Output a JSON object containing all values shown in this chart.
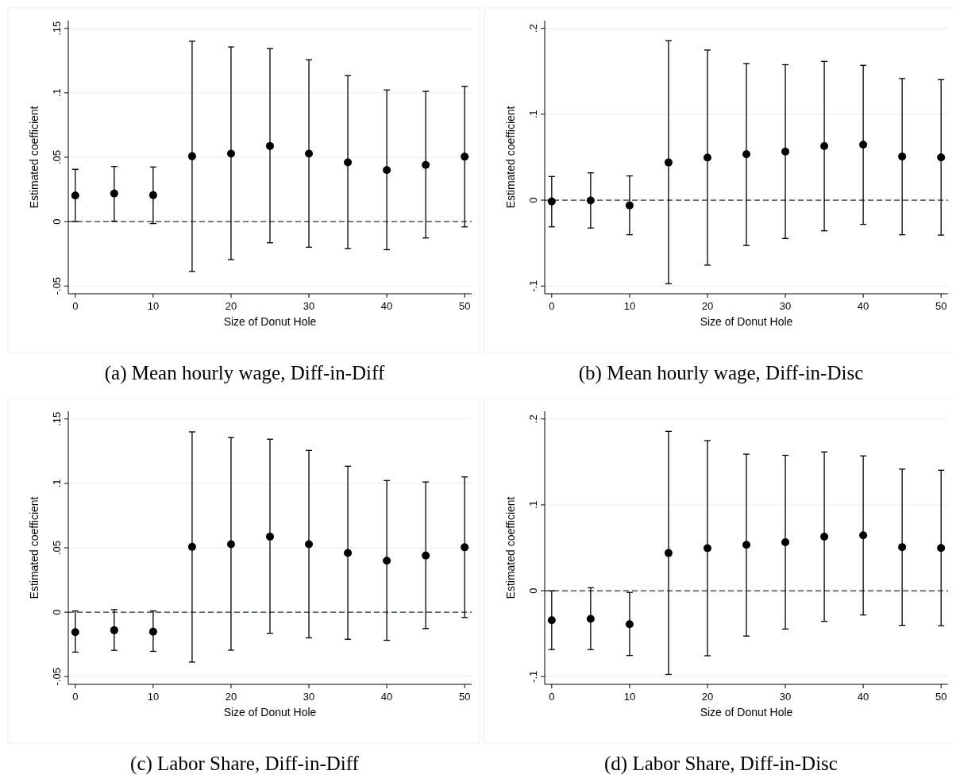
{
  "chart_data": [
    {
      "type": "scatter",
      "title": "(a) Mean hourly wage, Diff-in-Diff",
      "xlabel": "Size of Donut Hole",
      "ylabel": "Estimated coefficient",
      "x": [
        0,
        5,
        10,
        15,
        20,
        25,
        30,
        35,
        40,
        45,
        50
      ],
      "xlim": [
        -0.9,
        50.9
      ],
      "xticks": [
        0,
        10,
        20,
        30,
        40,
        50
      ],
      "ylim": [
        -0.056,
        0.156
      ],
      "yticks": [
        {
          "value": -0.05,
          "label": "-.05"
        },
        {
          "value": 0,
          "label": "0"
        },
        {
          "value": 0.05,
          "label": ".05"
        },
        {
          "value": 0.1,
          "label": ".1"
        },
        {
          "value": 0.15,
          "label": ".15"
        }
      ],
      "grid": "y",
      "marker": "circle",
      "ref_lines": [
        {
          "axis": "y",
          "value": 0,
          "line_style": "dashed",
          "color": "#333333"
        }
      ],
      "series": [
        {
          "color": "#000000",
          "values": [
            0.0203,
            0.0218,
            0.0205,
            0.0507,
            0.0528,
            0.0587,
            0.0528,
            0.046,
            0.04,
            0.044,
            0.0504
          ],
          "errors": [
            [
              0,
              0.0406
            ],
            [
              0.0004,
              0.0428
            ],
            [
              -0.0015,
              0.0424
            ],
            [
              -0.0387,
              0.14
            ],
            [
              -0.0295,
              0.1356
            ],
            [
              -0.0164,
              0.1343
            ],
            [
              -0.0199,
              0.1256
            ],
            [
              -0.021,
              0.1133
            ],
            [
              -0.0218,
              0.1022
            ],
            [
              -0.0127,
              0.1011
            ],
            [
              -0.0041,
              0.105
            ]
          ]
        }
      ]
    },
    {
      "type": "scatter",
      "title": "(b) Mean hourly wage, Diff-in-Disc",
      "xlabel": "Size of Donut Hole",
      "ylabel": "Estimated coefficient",
      "x": [
        0,
        5,
        10,
        15,
        20,
        25,
        30,
        35,
        40,
        45,
        50
      ],
      "xlim": [
        -0.9,
        50.9
      ],
      "xticks": [
        0,
        10,
        20,
        30,
        40,
        50
      ],
      "ylim": [
        -0.109,
        0.209
      ],
      "yticks": [
        {
          "value": -0.1,
          "label": "-.1"
        },
        {
          "value": 0,
          "label": "0"
        },
        {
          "value": 0.1,
          "label": ".1"
        },
        {
          "value": 0.2,
          "label": ".2"
        }
      ],
      "grid": "y",
      "marker": "circle",
      "ref_lines": [
        {
          "axis": "y",
          "value": 0,
          "line_style": "dashed",
          "color": "#333333"
        }
      ],
      "series": [
        {
          "color": "#000000",
          "values": [
            -0.0016,
            -0.0003,
            -0.0062,
            0.0439,
            0.0495,
            0.0534,
            0.0564,
            0.063,
            0.0646,
            0.0508,
            0.0498
          ],
          "errors": [
            [
              -0.0311,
              0.0275
            ],
            [
              -0.0325,
              0.0318
            ],
            [
              -0.0403,
              0.0282
            ],
            [
              -0.0974,
              0.1856
            ],
            [
              -0.0757,
              0.1748
            ],
            [
              -0.0528,
              0.159
            ],
            [
              -0.0446,
              0.1577
            ],
            [
              -0.0357,
              0.1616
            ],
            [
              -0.0282,
              0.157
            ],
            [
              -0.0403,
              0.1416
            ],
            [
              -0.0407,
              0.1403
            ]
          ]
        }
      ]
    },
    {
      "type": "scatter",
      "title": "(c) Labor Share, Diff-in-Diff",
      "xlabel": "Size of Donut Hole",
      "ylabel": "Estimated coefficient",
      "x": [
        0,
        5,
        10,
        15,
        20,
        25,
        30,
        35,
        40,
        45,
        50
      ],
      "xlim": [
        -0.9,
        50.9
      ],
      "xticks": [
        0,
        10,
        20,
        30,
        40,
        50
      ],
      "ylim": [
        -0.056,
        0.156
      ],
      "yticks": [
        {
          "value": -0.05,
          "label": "-.05"
        },
        {
          "value": 0,
          "label": "0"
        },
        {
          "value": 0.05,
          "label": ".05"
        },
        {
          "value": 0.1,
          "label": ".1"
        },
        {
          "value": 0.15,
          "label": ".15"
        }
      ],
      "grid": "y",
      "marker": "circle",
      "ref_lines": [
        {
          "axis": "y",
          "value": 0,
          "line_style": "dashed",
          "color": "#333333"
        }
      ],
      "series": [
        {
          "color": "#000000",
          "values": [
            -0.0155,
            -0.014,
            -0.0151,
            0.0507,
            0.0528,
            0.0587,
            0.0528,
            0.046,
            0.04,
            0.044,
            0.0504
          ],
          "errors": [
            [
              -0.031,
              0.001
            ],
            [
              -0.0296,
              0.002
            ],
            [
              -0.0304,
              0.001
            ],
            [
              -0.0387,
              0.14
            ],
            [
              -0.0295,
              0.1356
            ],
            [
              -0.0164,
              0.1343
            ],
            [
              -0.0199,
              0.1256
            ],
            [
              -0.021,
              0.1133
            ],
            [
              -0.0218,
              0.1022
            ],
            [
              -0.0127,
              0.1011
            ],
            [
              -0.0041,
              0.105
            ]
          ]
        }
      ]
    },
    {
      "type": "scatter",
      "title": "(d) Labor Share, Diff-in-Disc",
      "xlabel": "Size of Donut Hole",
      "ylabel": "Estimated coefficient",
      "x": [
        0,
        5,
        10,
        15,
        20,
        25,
        30,
        35,
        40,
        45,
        50
      ],
      "xlim": [
        -0.9,
        50.9
      ],
      "xticks": [
        0,
        10,
        20,
        30,
        40,
        50
      ],
      "ylim": [
        -0.109,
        0.209
      ],
      "yticks": [
        {
          "value": -0.1,
          "label": "-.1"
        },
        {
          "value": 0,
          "label": "0"
        },
        {
          "value": 0.1,
          "label": ".1"
        },
        {
          "value": 0.2,
          "label": ".2"
        }
      ],
      "grid": "y",
      "marker": "circle",
      "ref_lines": [
        {
          "axis": "y",
          "value": 0,
          "line_style": "dashed",
          "color": "#333333"
        }
      ],
      "series": [
        {
          "color": "#000000",
          "values": [
            -0.0344,
            -0.0328,
            -0.039,
            0.0439,
            0.0495,
            0.0534,
            0.0564,
            0.063,
            0.0646,
            0.0508,
            0.0498
          ],
          "errors": [
            [
              -0.0685,
              0
            ],
            [
              -0.0685,
              0.0036
            ],
            [
              -0.0754,
              -0.002
            ],
            [
              -0.0974,
              0.1856
            ],
            [
              -0.0757,
              0.1748
            ],
            [
              -0.0528,
              0.159
            ],
            [
              -0.0446,
              0.1577
            ],
            [
              -0.0357,
              0.1616
            ],
            [
              -0.0282,
              0.157
            ],
            [
              -0.0403,
              0.1416
            ],
            [
              -0.0407,
              0.1403
            ]
          ]
        }
      ]
    }
  ]
}
